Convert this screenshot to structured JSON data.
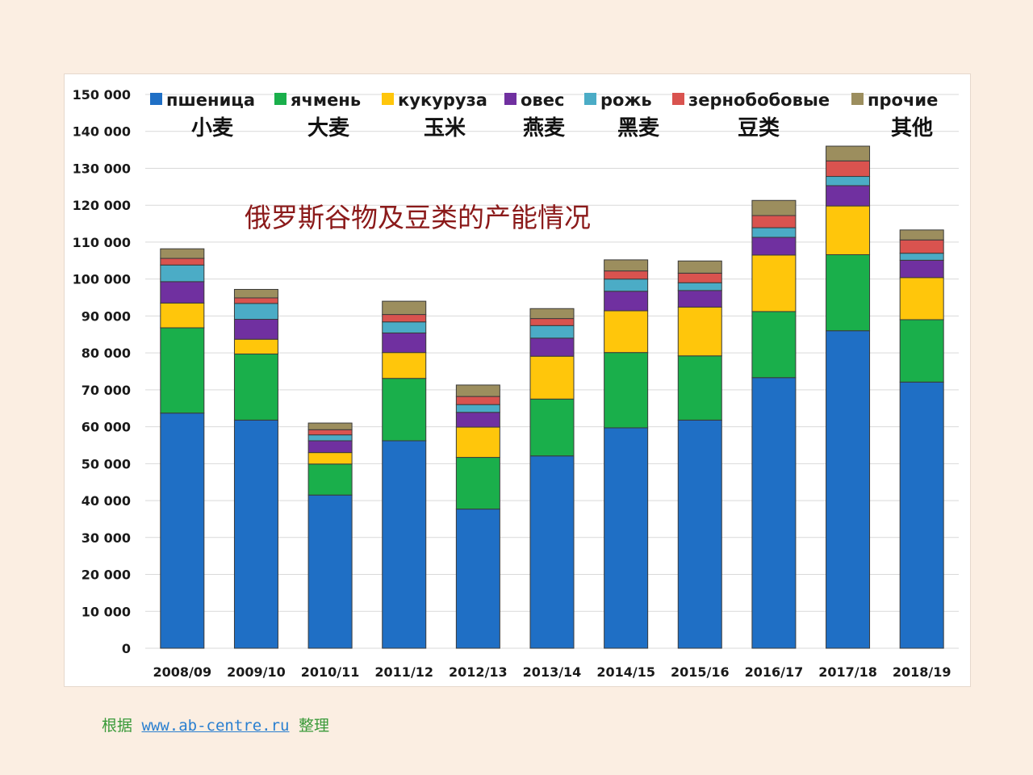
{
  "chart_data": {
    "type": "bar",
    "stacked": true,
    "title": "俄罗斯谷物及豆类的产能情况",
    "xlabel": "",
    "ylabel": "",
    "ylim": [
      0,
      150000
    ],
    "yticks": [
      0,
      10000,
      20000,
      30000,
      40000,
      50000,
      60000,
      70000,
      80000,
      90000,
      100000,
      110000,
      120000,
      130000,
      140000,
      150000
    ],
    "ytick_labels": [
      "0",
      "10 000",
      "20 000",
      "30 000",
      "40 000",
      "50 000",
      "60 000",
      "70 000",
      "80 000",
      "90 000",
      "100 000",
      "110 000",
      "120 000",
      "130 000",
      "140 000",
      "150 000"
    ],
    "grid": true,
    "legend_position": "top",
    "categories": [
      "2008/09",
      "2009/10",
      "2010/11",
      "2011/12",
      "2012/13",
      "2013/14",
      "2014/15",
      "2015/16",
      "2016/17",
      "2017/18",
      "2018/19"
    ],
    "series": [
      {
        "name": "пшеница",
        "name_cn": "小麦",
        "color": "#1f6fc5",
        "values": [
          63700,
          61800,
          41500,
          56200,
          37700,
          52100,
          59700,
          61800,
          73300,
          86000,
          72100
        ]
      },
      {
        "name": "ячмень",
        "name_cn": "大麦",
        "color": "#1aaf4b",
        "values": [
          23100,
          17900,
          8400,
          16900,
          14000,
          15400,
          20400,
          17400,
          17900,
          20600,
          16900
        ]
      },
      {
        "name": "кукуруза",
        "name_cn": "玉米",
        "color": "#ffc60b",
        "values": [
          6700,
          4000,
          3100,
          7000,
          8200,
          11600,
          11300,
          13200,
          15300,
          13200,
          11400
        ]
      },
      {
        "name": "овес",
        "name_cn": "燕麦",
        "color": "#7030a0",
        "values": [
          5800,
          5400,
          3200,
          5300,
          4000,
          4900,
          5300,
          4500,
          4800,
          5500,
          4700
        ]
      },
      {
        "name": "рожь",
        "name_cn": "黑麦",
        "color": "#4bacc6",
        "values": [
          4500,
          4300,
          1600,
          3000,
          2100,
          3400,
          3300,
          2100,
          2600,
          2500,
          1900
        ]
      },
      {
        "name": "зернобобовые",
        "name_cn": "豆类",
        "color": "#d9534f",
        "values": [
          1800,
          1500,
          1400,
          2000,
          2200,
          1900,
          2200,
          2600,
          3300,
          4200,
          3600
        ]
      },
      {
        "name": "прочие",
        "name_cn": "其他",
        "color": "#9c8e5e",
        "values": [
          2600,
          2300,
          1800,
          3600,
          3100,
          2700,
          3000,
          3300,
          4100,
          4000,
          2700
        ]
      }
    ]
  },
  "source": {
    "prefix": "根据",
    "link": "www.ab-centre.ru",
    "suffix": "整理"
  }
}
